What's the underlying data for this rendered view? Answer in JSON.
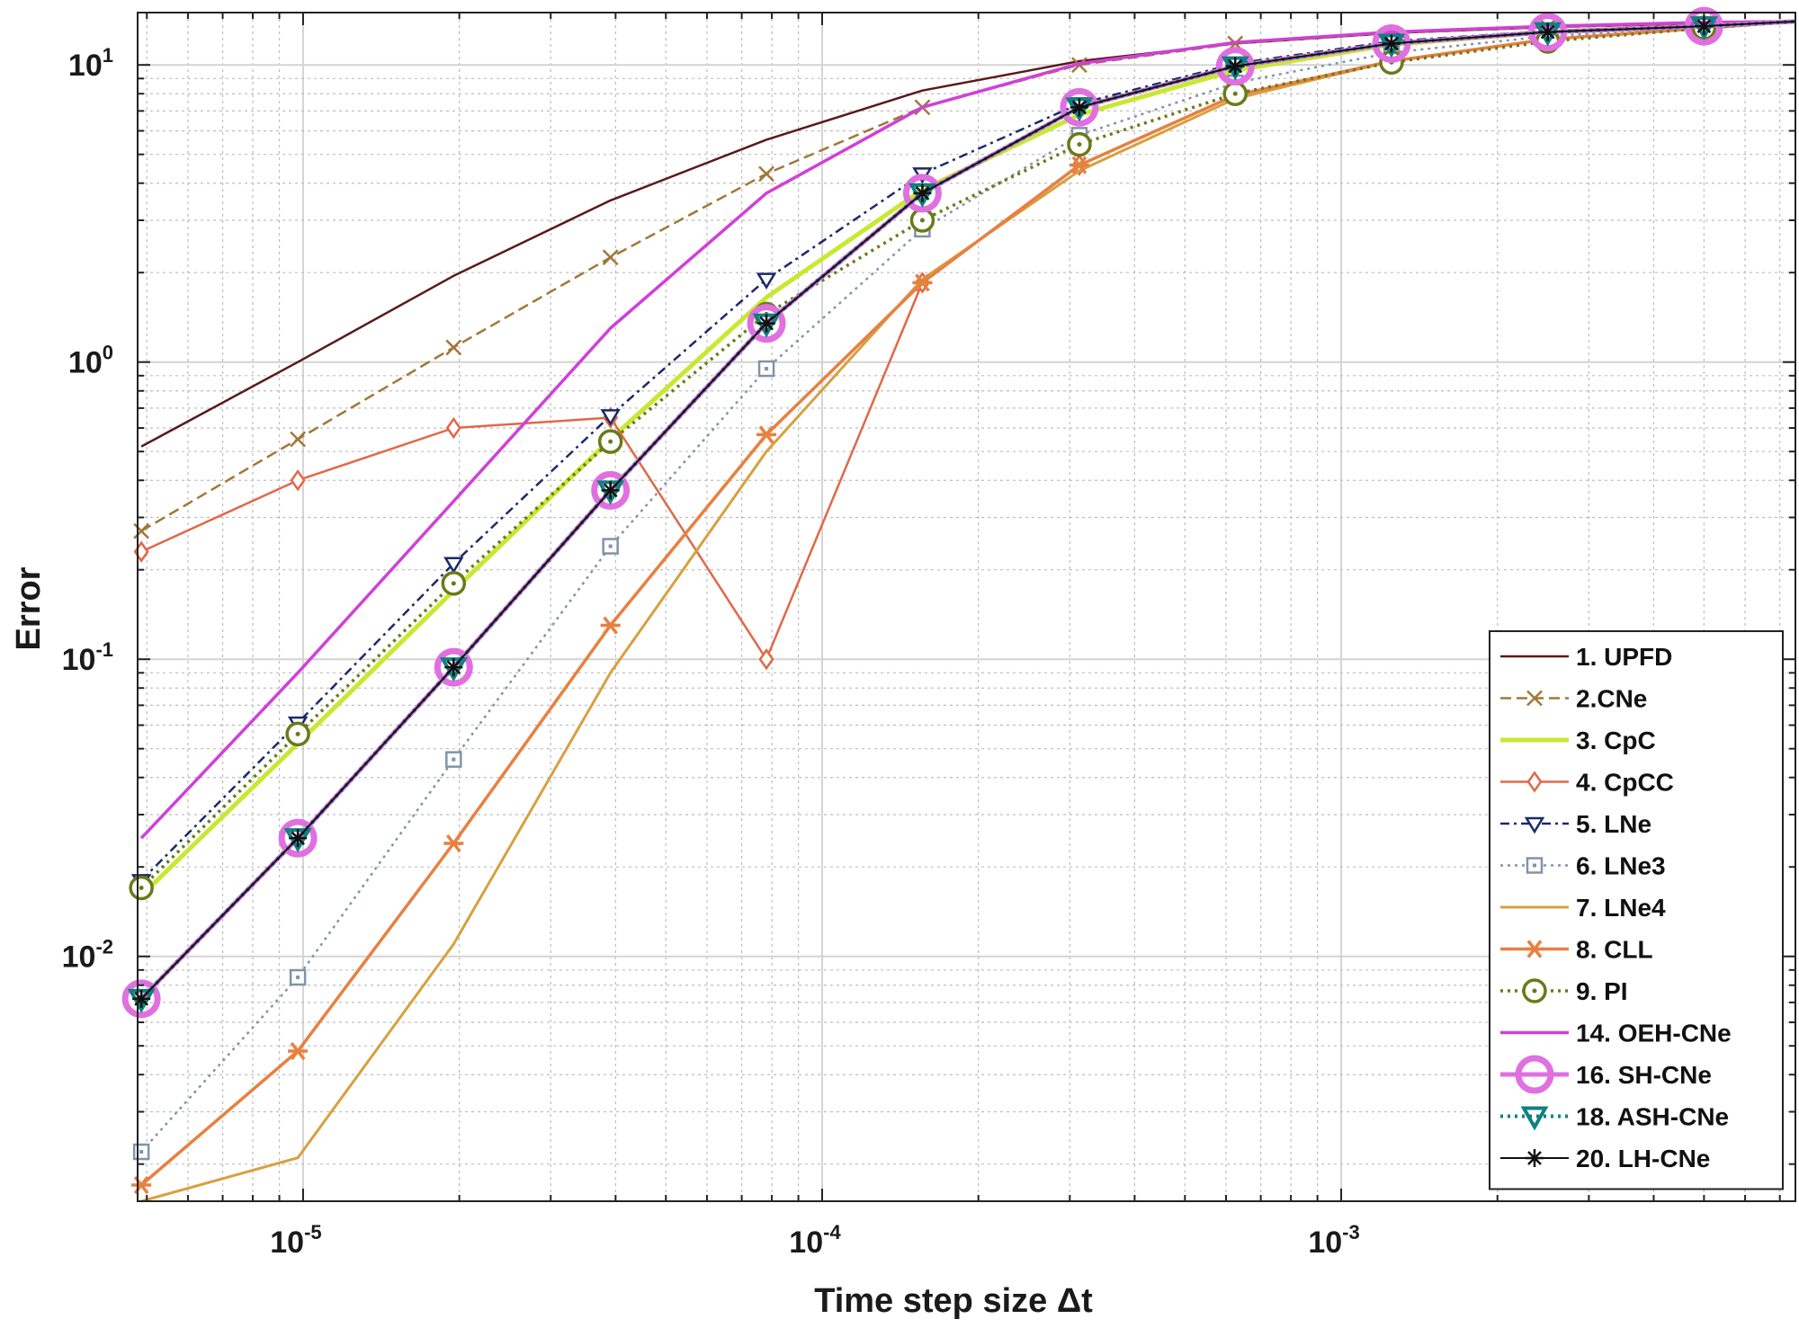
{
  "chart_data": {
    "type": "line",
    "xlabel": "Time step size Δt",
    "ylabel": "Error",
    "xscale": "log",
    "yscale": "log",
    "xlim": [
      4.8e-06,
      0.0075
    ],
    "ylim": [
      0.0015,
      15
    ],
    "grid": true,
    "minor_grid": true,
    "legend_position": "bottom-right",
    "x_ticks": [
      {
        "value": 1e-05,
        "base": "10",
        "exp": "-5"
      },
      {
        "value": 0.0001,
        "base": "10",
        "exp": "-4"
      },
      {
        "value": 0.001,
        "base": "10",
        "exp": "-3"
      }
    ],
    "y_ticks": [
      {
        "value": 0.01,
        "base": "10",
        "exp": "-2"
      },
      {
        "value": 0.1,
        "base": "10",
        "exp": "-1"
      },
      {
        "value": 1,
        "base": "10",
        "exp": "0"
      },
      {
        "value": 10,
        "base": "10",
        "exp": "1"
      }
    ],
    "x": [
      4.88e-06,
      9.77e-06,
      1.95e-05,
      3.91e-05,
      7.81e-05,
      0.000156,
      0.000313,
      0.000625,
      0.00125,
      0.0025,
      0.005,
      0.0075
    ],
    "series": [
      {
        "name": "1. UPFD",
        "color": "#5a1a1a",
        "width": 2.5,
        "dash": "",
        "marker": "none",
        "values": [
          0.52,
          1.0,
          1.95,
          3.5,
          5.6,
          8.2,
          10.3,
          11.8,
          12.8,
          13.4,
          13.8,
          14.0
        ]
      },
      {
        "name": "2.CNe",
        "color": "#a07838",
        "width": 2.5,
        "dash": "12,6",
        "marker": "x",
        "values": [
          0.27,
          0.55,
          1.12,
          2.25,
          4.3,
          7.2,
          10.0,
          11.8,
          12.8,
          13.4,
          13.8,
          14.0
        ]
      },
      {
        "name": "3. CpC",
        "color": "#c8e832",
        "width": 5,
        "dash": "",
        "marker": "none",
        "values": [
          0.016,
          0.052,
          0.17,
          0.55,
          1.65,
          3.8,
          6.8,
          9.6,
          11.7,
          12.9,
          13.5,
          14.0
        ]
      },
      {
        "name": "4. CpCC",
        "color": "#e06848",
        "width": 2.5,
        "dash": "",
        "marker": "diamond",
        "values": [
          0.23,
          0.4,
          0.6,
          0.65,
          0.1,
          1.85,
          4.6,
          7.9,
          10.3,
          12.2,
          13.3,
          14.0
        ]
      },
      {
        "name": "5. LNe",
        "color": "#1a2a6a",
        "width": 2.5,
        "dash": "10,5,3,5",
        "marker": "tri",
        "values": [
          0.018,
          0.061,
          0.21,
          0.66,
          1.9,
          4.3,
          7.4,
          10.1,
          12.0,
          13.0,
          13.6,
          14.0
        ]
      },
      {
        "name": "6. LNe3",
        "color": "#8094a8",
        "width": 2.5,
        "dash": "3,5",
        "marker": "square",
        "values": [
          0.0022,
          0.0085,
          0.046,
          0.24,
          0.95,
          2.8,
          5.8,
          8.7,
          11.0,
          12.5,
          13.4,
          14.0
        ]
      },
      {
        "name": "7. LNe4",
        "color": "#d8a040",
        "width": 3,
        "dash": "",
        "marker": "none",
        "values": [
          0.0015,
          0.0021,
          0.011,
          0.09,
          0.5,
          1.9,
          4.4,
          7.7,
          10.3,
          12.2,
          13.3,
          14.0
        ]
      },
      {
        "name": "8. CLL",
        "color": "#e88040",
        "width": 3.5,
        "dash": "",
        "marker": "star",
        "values": [
          0.0017,
          0.0048,
          0.024,
          0.13,
          0.57,
          1.85,
          4.6,
          7.9,
          10.3,
          12.2,
          13.3,
          14.0
        ]
      },
      {
        "name": "9. PI",
        "color": "#6a7a18",
        "width": 3.5,
        "dash": "3,5",
        "marker": "circle",
        "values": [
          0.017,
          0.056,
          0.18,
          0.54,
          1.45,
          3.0,
          5.4,
          8.0,
          10.2,
          12.0,
          13.3,
          14.0
        ]
      },
      {
        "name": "14. OEH-CNe",
        "color": "#d040d8",
        "width": 3.5,
        "dash": "",
        "marker": "none",
        "values": [
          0.025,
          0.09,
          0.34,
          1.3,
          3.7,
          7.2,
          10.1,
          11.9,
          12.9,
          13.5,
          13.9,
          14.0
        ]
      },
      {
        "name": "16. SH-CNe",
        "color": "#e070e0",
        "width": 5,
        "dash": "",
        "marker": "bigcircle",
        "values": [
          0.0072,
          0.025,
          0.094,
          0.37,
          1.35,
          3.7,
          7.2,
          9.9,
          11.8,
          12.9,
          13.5,
          14.0
        ]
      },
      {
        "name": "18. ASH-CNe",
        "color": "#108080",
        "width": 4,
        "dash": "3,5",
        "marker": "tridown",
        "values": [
          0.0072,
          0.025,
          0.094,
          0.37,
          1.35,
          3.7,
          7.2,
          9.9,
          11.8,
          12.9,
          13.5,
          14.0
        ]
      },
      {
        "name": "20. LH-CNe",
        "color": "#101010",
        "width": 2,
        "dash": "",
        "marker": "asterisk",
        "values": [
          0.0072,
          0.025,
          0.094,
          0.37,
          1.35,
          3.7,
          7.2,
          9.9,
          11.8,
          12.9,
          13.5,
          14.0
        ]
      }
    ]
  }
}
